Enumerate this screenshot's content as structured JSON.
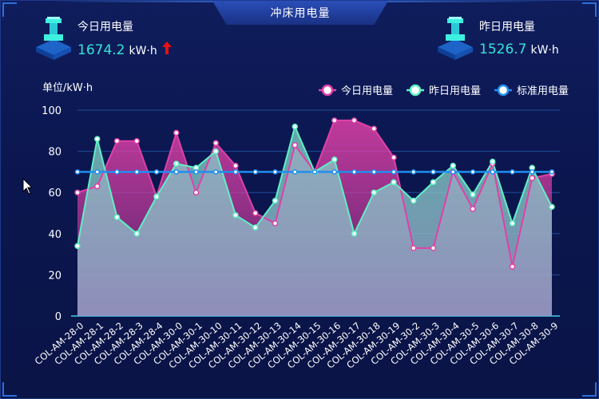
{
  "header": {
    "title": "冲床用电量"
  },
  "stats": {
    "today": {
      "label": "今日用电量",
      "value": "1674.2",
      "unit": "kW·h",
      "trend": "up",
      "icon": "factory-machine-icon"
    },
    "yesterday": {
      "label": "昨日用电量",
      "value": "1526.7",
      "unit": "kW·h",
      "icon": "factory-machine-icon"
    }
  },
  "colors": {
    "today": "#e040a8",
    "yesterday": "#5ef0c4",
    "standard": "#1e8ff0",
    "value_text": "#35e3d5",
    "arrow": "#e81010"
  },
  "chart_data": {
    "type": "area",
    "ylabel": "单位/kW·h",
    "ylim": [
      0,
      100
    ],
    "yticks": [
      0,
      20,
      40,
      60,
      80,
      100
    ],
    "grid": true,
    "legend_position": "top-right",
    "categories": [
      "COL-AM-28-0",
      "COL-AM-28-1",
      "COL-AM-28-2",
      "COL-AM-28-3",
      "COL-AM-28-4",
      "COL-AM-30-0",
      "COL-AM-30-1",
      "COL-AM-30-10",
      "COL-AM-30-11",
      "COL-AM-30-12",
      "COL-AM-30-13",
      "COL-AM-30-14",
      "COL-AM-30-15",
      "COL-AM-30-16",
      "COL-AM-30-17",
      "COL-AM-30-18",
      "COL-AM-30-19",
      "COL-AM-30-2",
      "COL-AM-30-3",
      "COL-AM-30-4",
      "COL-AM-30-5",
      "COL-AM-30-6",
      "COL-AM-30-7",
      "COL-AM-30-8",
      "COL-AM-30-9"
    ],
    "series": [
      {
        "name": "今日用电量",
        "type": "area",
        "values": [
          60,
          63,
          85,
          85,
          58,
          89,
          60,
          84,
          73,
          50,
          45,
          83,
          70,
          95,
          95,
          91,
          77,
          33,
          33,
          70,
          52,
          74,
          24,
          67,
          69
        ]
      },
      {
        "name": "昨日用电量",
        "type": "area",
        "values": [
          34,
          86,
          48,
          40,
          58,
          74,
          72,
          80,
          49,
          43,
          56,
          92,
          70,
          76,
          40,
          60,
          65,
          56,
          65,
          73,
          59,
          75,
          45,
          72,
          53
        ]
      },
      {
        "name": "标准用电量",
        "type": "line",
        "values": [
          70,
          70,
          70,
          70,
          70,
          70,
          70,
          70,
          70,
          70,
          70,
          70,
          70,
          70,
          70,
          70,
          70,
          70,
          70,
          70,
          70,
          70,
          70,
          70,
          70
        ]
      }
    ]
  }
}
